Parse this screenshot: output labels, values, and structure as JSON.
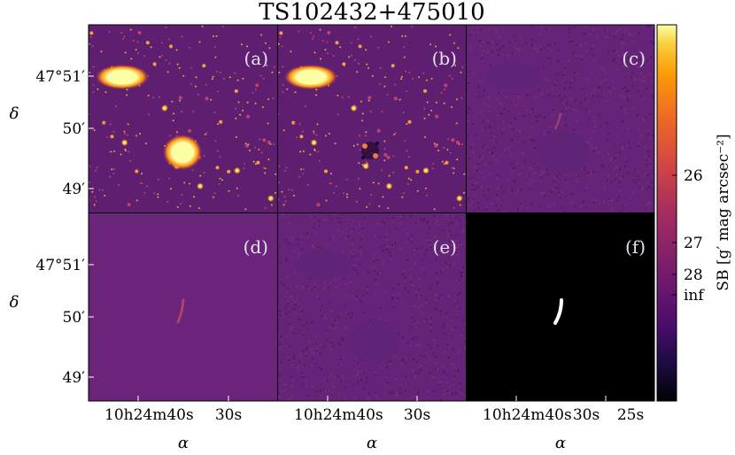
{
  "figure": {
    "title": "TS102432+475010",
    "panels": [
      {
        "id": "a",
        "label": "(a)",
        "kind": "raw-image"
      },
      {
        "id": "b",
        "label": "(b)",
        "kind": "galaxy-subtracted"
      },
      {
        "id": "c",
        "label": "(c)",
        "kind": "masked-residual"
      },
      {
        "id": "d",
        "label": "(d)",
        "kind": "model"
      },
      {
        "id": "e",
        "label": "(e)",
        "kind": "model-residual"
      },
      {
        "id": "f",
        "label": "(f)",
        "kind": "binary-mask"
      }
    ],
    "y_axis": {
      "label": "δ",
      "ticks_top_row": [
        "47°51′",
        "50′",
        "49′"
      ],
      "ticks_bottom_row": [
        "47°51′",
        "50′",
        "49′"
      ]
    },
    "x_axis": {
      "label": "α",
      "ticks_col1": [
        "10h24m40s",
        "30s"
      ],
      "ticks_col2": [
        "10h24m40s",
        "30s"
      ],
      "ticks_col3": [
        "10h24m40s",
        "30s",
        "25s"
      ]
    },
    "colorbar": {
      "label": "SB [g′ mag arcsec⁻²]",
      "ticks": [
        "26",
        "27",
        "28",
        "inf"
      ],
      "colormap": "inferno"
    }
  },
  "chart_data": {
    "type": "heatmap",
    "title": "TS102432+475010",
    "xlabel": "α",
    "ylabel": "δ",
    "colorbar_label": "SB [g′ mag arcsec⁻²]",
    "colorbar_ticks": [
      "26",
      "27",
      "28",
      "inf"
    ],
    "panel_labels": [
      "(a)",
      "(b)",
      "(c)",
      "(d)",
      "(e)",
      "(f)"
    ],
    "x_ticks": [
      "10h24m40s",
      "30s",
      "25s"
    ],
    "y_ticks": [
      "47°51′",
      "50′",
      "49′"
    ]
  },
  "colors": {
    "background_purple": "#5a1f6e",
    "mid_purple": "#6b2478",
    "bright_yellow": "#fcffa4",
    "orange": "#f98e09",
    "mask_black": "#000000",
    "mask_white": "#ffffff"
  }
}
